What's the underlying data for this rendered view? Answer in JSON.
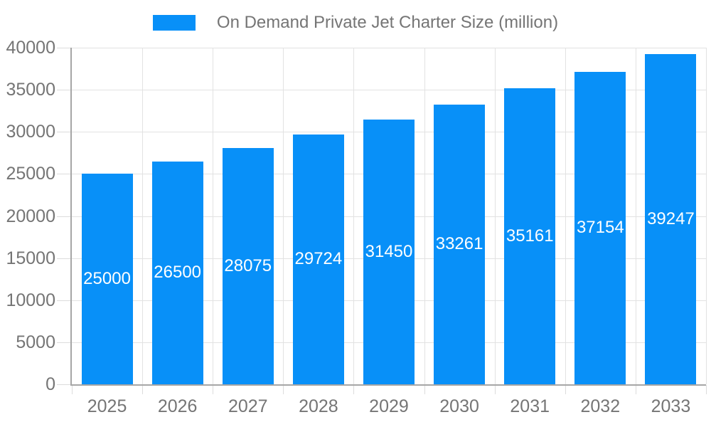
{
  "legend": {
    "label": "On Demand Private Jet Charter Size (million)"
  },
  "colors": {
    "bar": "#0890f8",
    "grid": "#e2e2e2",
    "tick": "#dcdcdc",
    "axis": "#a6a6a6",
    "text": "#757575",
    "bar_label": "#ffffff",
    "background": "#ffffff"
  },
  "chart_data": {
    "type": "bar",
    "title": "On Demand Private Jet Charter Size (million)",
    "categories": [
      "2025",
      "2026",
      "2027",
      "2028",
      "2029",
      "2030",
      "2031",
      "2032",
      "2033"
    ],
    "values": [
      25000,
      26500,
      28075,
      29724,
      31450,
      33261,
      35161,
      37154,
      39247
    ],
    "xlabel": "",
    "ylabel": "",
    "ylim": [
      0,
      40000
    ],
    "yticks": [
      0,
      5000,
      10000,
      15000,
      20000,
      25000,
      30000,
      35000,
      40000
    ],
    "grid": true,
    "legend_position": "top",
    "value_labels": "inside-center"
  }
}
